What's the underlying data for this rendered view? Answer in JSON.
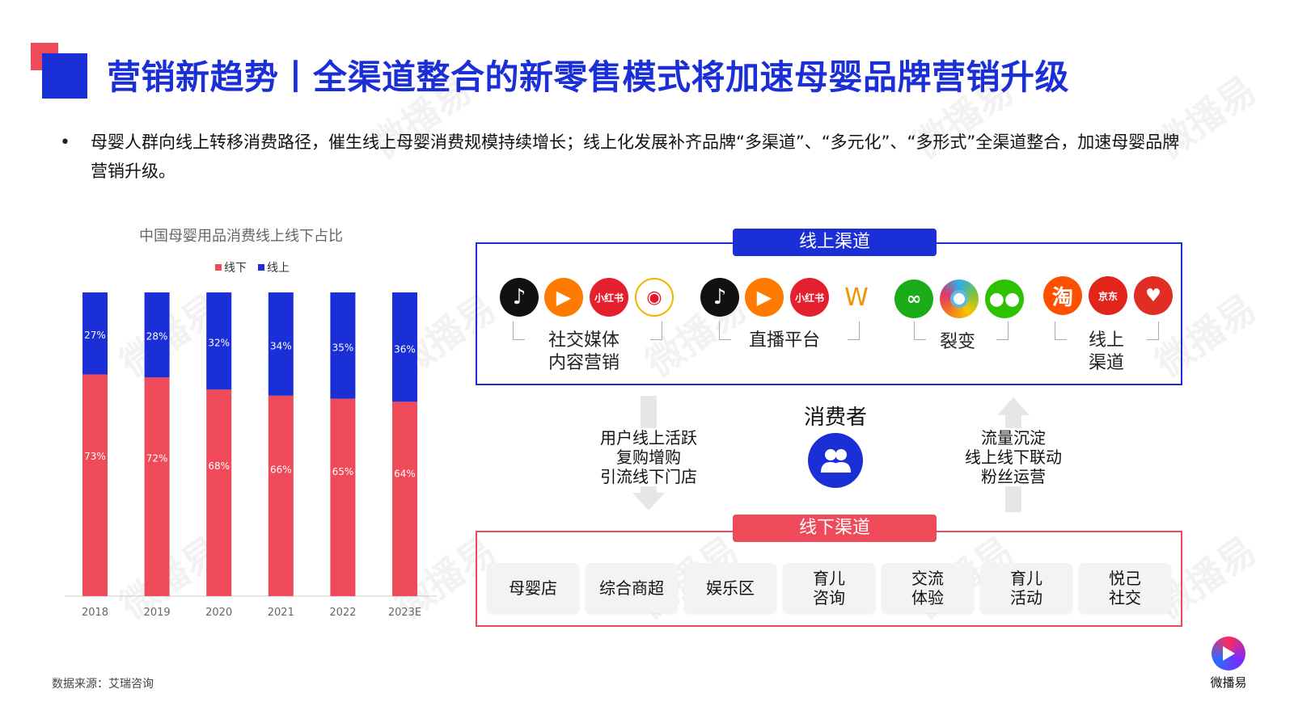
{
  "header": {
    "title": "营销新趋势丨全渠道整合的新零售模式将加速母婴品牌营销升级",
    "bullet": "母婴人群向线上转移消费路径，催生线上母婴消费规模持续增长；线上化发展补齐品牌“多渠道”、“多元化”、“多形式”全渠道整合，加速母婴品牌营销升级。"
  },
  "chart_data": {
    "type": "bar",
    "stacked": true,
    "title": "中国母婴用品消费线上线下占比",
    "categories": [
      "2018",
      "2019",
      "2020",
      "2021",
      "2022",
      "2023E"
    ],
    "series": [
      {
        "name": "线下",
        "values": [
          73,
          72,
          68,
          66,
          65,
          64
        ],
        "labels": [
          "73%",
          "72%",
          "68%",
          "66%",
          "65%",
          "64%"
        ],
        "color": "#ef4a5a"
      },
      {
        "name": "线上",
        "values": [
          27,
          28,
          32,
          34,
          35,
          36
        ],
        "labels": [
          "27%",
          "28%",
          "32%",
          "34%",
          "35%",
          "36%"
        ],
        "color": "#1b2fd6"
      }
    ],
    "ylim": [
      0,
      100
    ],
    "legend_position": "top",
    "grid": false
  },
  "online": {
    "label": "线上渠道",
    "groups": [
      {
        "label": "社交媒体\n内容营销",
        "icons": [
          "douyin-icon",
          "kuaishou-icon",
          "xiaohongshu-icon",
          "weibo-icon"
        ]
      },
      {
        "label": "直播平台",
        "icons": [
          "douyin-icon",
          "kuaishou-icon",
          "xiaohongshu-icon",
          "vipshop-icon"
        ]
      },
      {
        "label": "裂变",
        "icons": [
          "mini-program-icon",
          "moments-icon",
          "wechat-icon"
        ]
      },
      {
        "label": "线上\n渠道",
        "icons": [
          "taobao-icon",
          "jd-icon",
          "pinduoduo-icon"
        ]
      }
    ],
    "icon_text": {
      "xiaohongshu": "小红书",
      "taobao": "淘",
      "jd": "京东"
    }
  },
  "middle": {
    "consumer": "消费者",
    "left_text": [
      "用户线上活跃",
      "复购增购",
      "引流线下门店"
    ],
    "right_text": [
      "流量沉淀",
      "线上线下联动",
      "粉丝运营"
    ]
  },
  "offline": {
    "label": "线下渠道",
    "items": [
      "母婴店",
      "综合商超",
      "娱乐区",
      "育儿\n咨询",
      "交流\n体验",
      "育儿\n活动",
      "悦己\n社交"
    ]
  },
  "footer": {
    "source": "数据来源：艾瑞咨询",
    "brand": "微播易"
  },
  "colors": {
    "blue": "#1b2fd6",
    "red": "#ef4a5a"
  }
}
